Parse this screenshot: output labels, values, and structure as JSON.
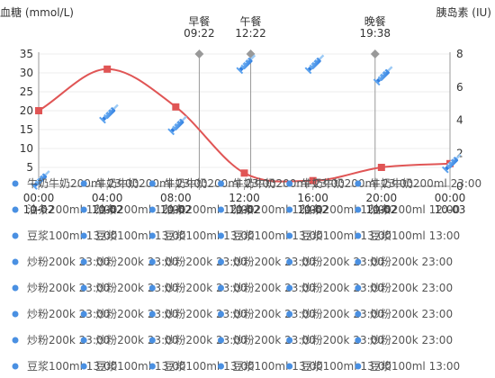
{
  "chart_data": {
    "type": "line",
    "y_left_label": "血糖 (mmol/L)",
    "y_right_label": "胰岛素 (IU)",
    "y_left_ticks": [
      "35",
      "30",
      "25",
      "20",
      "15",
      "10",
      "5"
    ],
    "y_right_ticks": [
      "8",
      "6",
      "4",
      "2",
      "0"
    ],
    "ylim_left": [
      0,
      35
    ],
    "ylim_right": [
      0,
      8
    ],
    "x_ticks": [
      {
        "time": "00:00",
        "date": "10-02"
      },
      {
        "time": "04:00",
        "date": "10-02"
      },
      {
        "time": "08:00",
        "date": "10-02"
      },
      {
        "time": "12:00",
        "date": "10-02"
      },
      {
        "time": "16:00",
        "date": "10-02"
      },
      {
        "time": "20:00",
        "date": "10-02"
      },
      {
        "time": "00:00",
        "date": "10-03"
      }
    ],
    "glucose_series": {
      "color": "#e05555",
      "points": [
        {
          "hour": 0,
          "value": 20
        },
        {
          "hour": 4,
          "value": 31
        },
        {
          "hour": 8,
          "value": 21
        },
        {
          "hour": 12,
          "value": 3.5
        },
        {
          "hour": 16,
          "value": 1.5
        },
        {
          "hour": 20,
          "value": 5
        },
        {
          "hour": 24,
          "value": 6
        }
      ]
    },
    "meals": [
      {
        "name": "早餐",
        "time": "09:22",
        "hour": 9.37
      },
      {
        "name": "午餐",
        "time": "12:22",
        "hour": 12.37
      },
      {
        "name": "晚餐",
        "time": "19:38",
        "hour": 19.63
      }
    ],
    "insulin_markers": [
      {
        "hour": 0,
        "value": 0.5
      },
      {
        "hour": 4,
        "value": 4.5
      },
      {
        "hour": 8,
        "value": 3.8
      },
      {
        "hour": 12,
        "value": 7.5
      },
      {
        "hour": 16,
        "value": 7.5
      },
      {
        "hour": 20,
        "value": 6.8
      },
      {
        "hour": 24,
        "value": 1.5
      }
    ],
    "food_rows": [
      "牛奶牛奶200ml 23:00",
      "油条200ml 12:00",
      "豆浆100ml 13:00",
      "炒粉200k 23:00",
      "炒粉200k 23:00",
      "炒粉200k 23:00",
      "炒粉200k 23:00",
      "豆浆100ml 13:00"
    ],
    "food_col_hours": [
      0,
      4,
      8,
      12,
      16,
      20
    ]
  }
}
